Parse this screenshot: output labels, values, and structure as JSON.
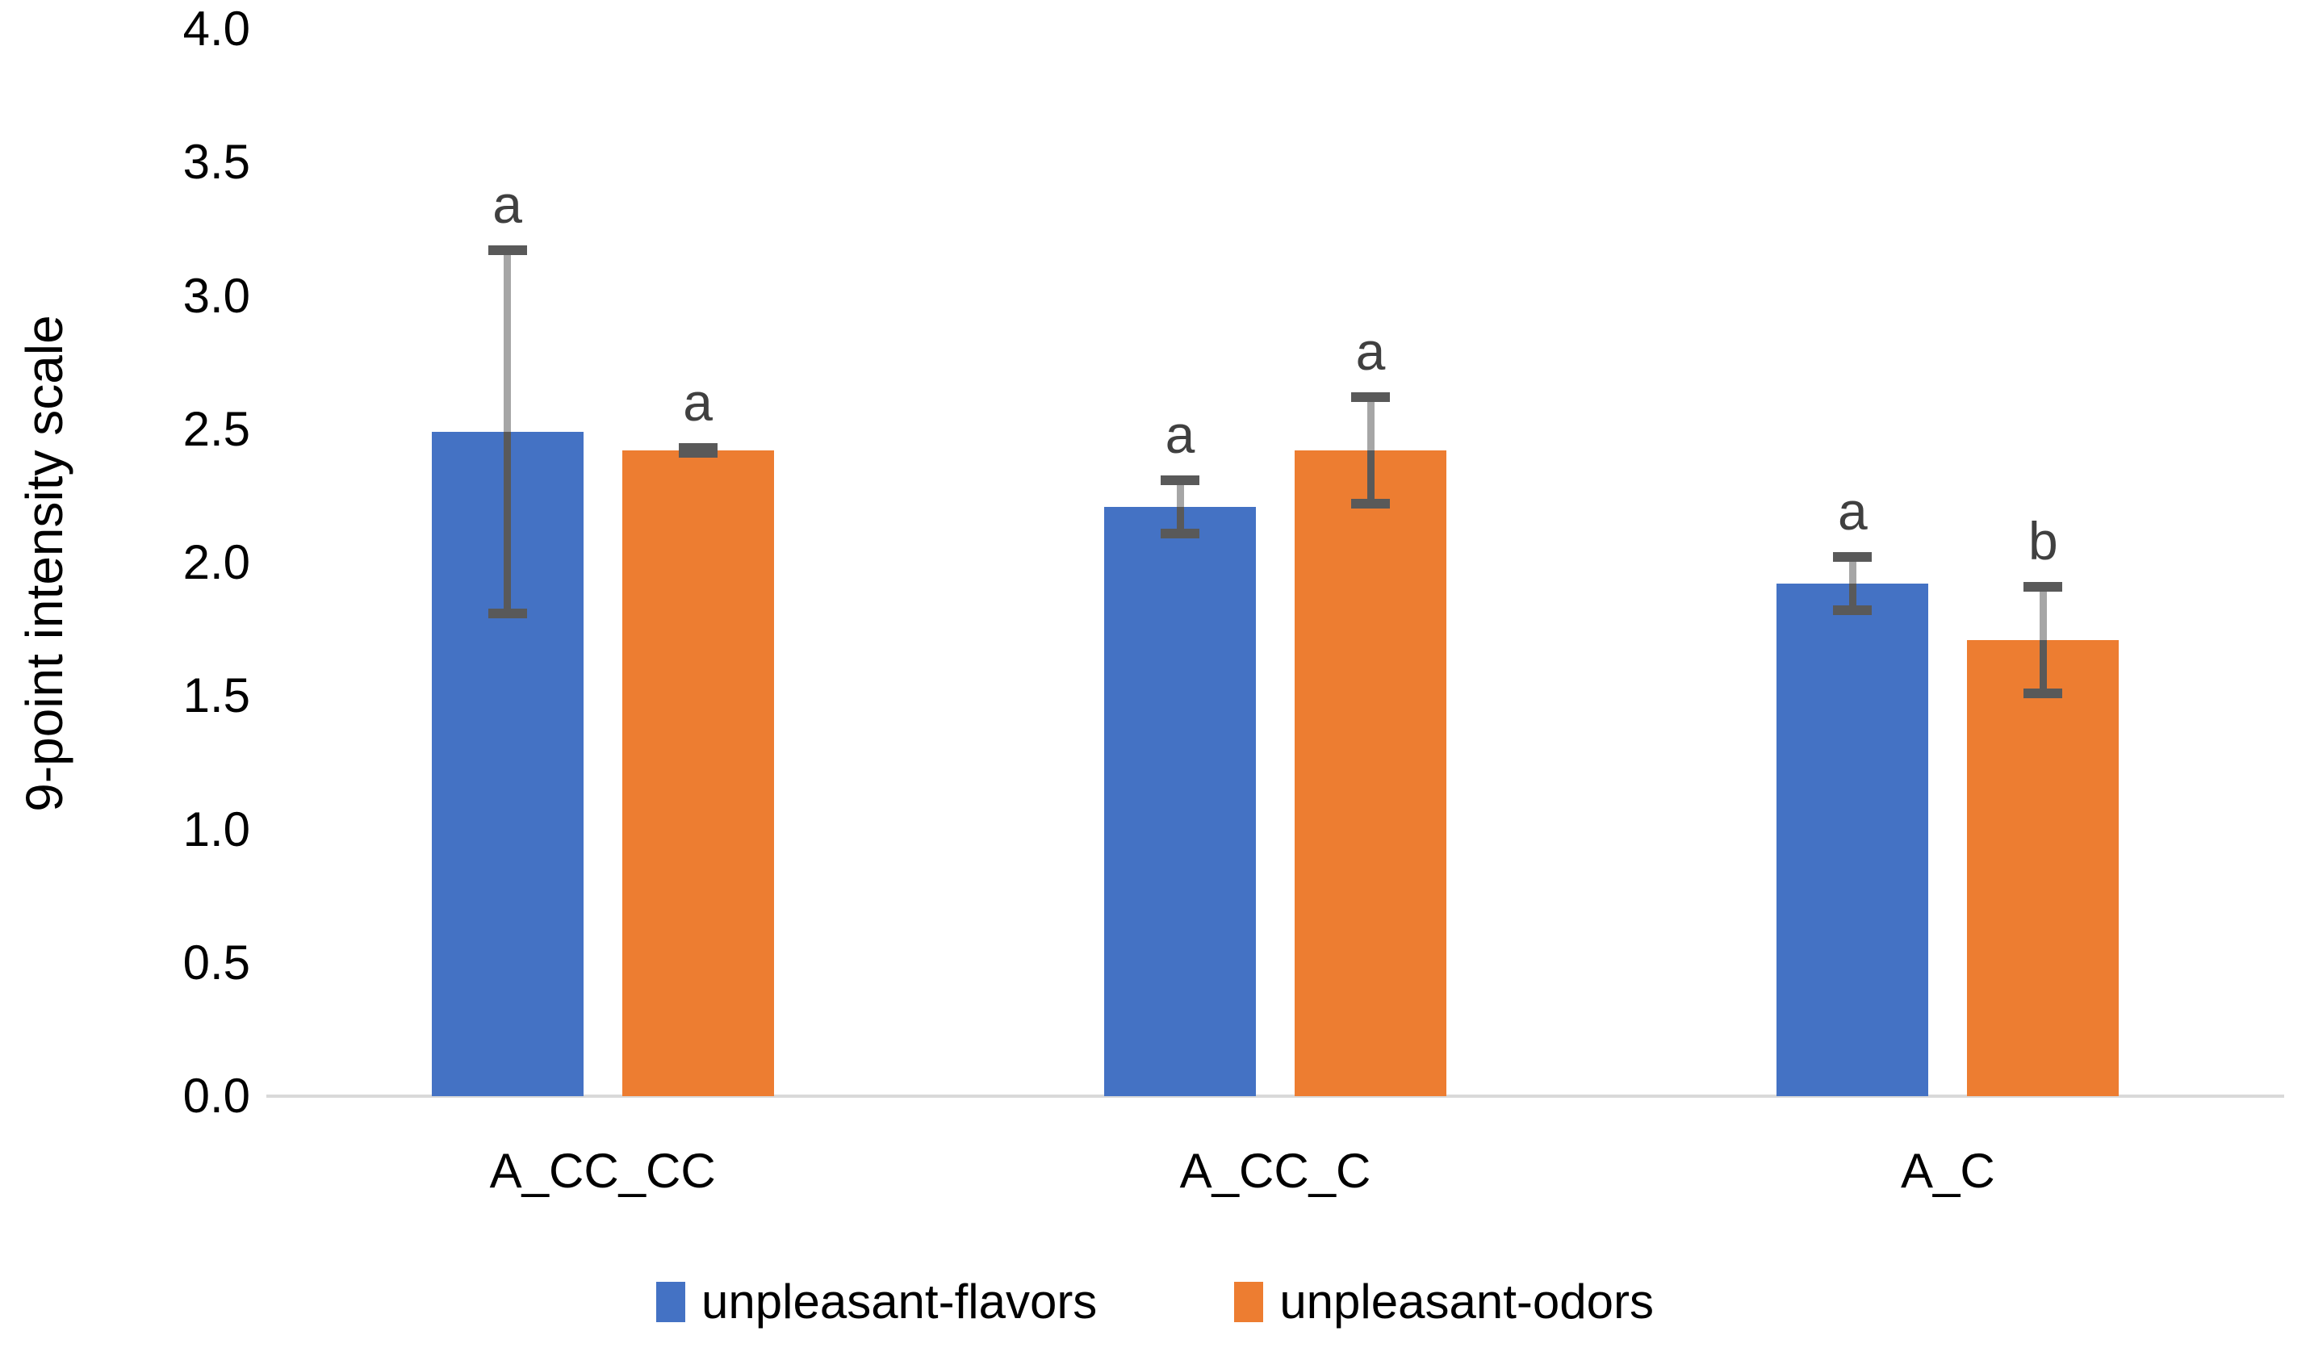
{
  "chart_data": {
    "type": "bar",
    "title": "",
    "xlabel": "",
    "ylabel": "9-point intensity scale",
    "ylim": [
      0.0,
      4.0
    ],
    "ytick_step": 0.5,
    "ytick_decimals": 1,
    "grid": false,
    "legend_position": "bottom",
    "categories": [
      "A_CC_CC",
      "A_CC_C",
      "A_C"
    ],
    "series": [
      {
        "name": "unpleasant-flavors",
        "color": "#4472C4",
        "values": [
          2.49,
          2.21,
          1.92
        ],
        "errors": [
          0.68,
          0.1,
          0.1
        ],
        "sig_letters": [
          "a",
          "a",
          "a"
        ]
      },
      {
        "name": "unpleasant-odors",
        "color": "#ED7D31",
        "values": [
          2.42,
          2.42,
          1.71
        ],
        "errors": [
          0.01,
          0.2,
          0.2
        ],
        "sig_letters": [
          "a",
          "a",
          "b"
        ]
      }
    ],
    "colors": {
      "error_cap": "#595959",
      "error_whisker_above_bar": "#A6A6A6",
      "error_whisker_on_bar": "#595959",
      "axis_line": "#D9D9D9",
      "sig_letter": "#404040",
      "text": "#000000"
    }
  }
}
